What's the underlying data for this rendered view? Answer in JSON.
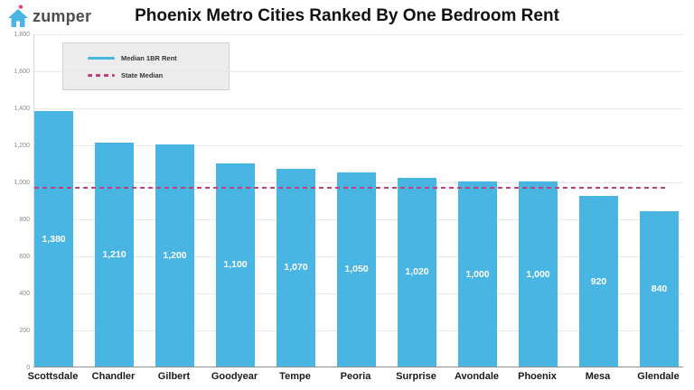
{
  "header": {
    "brand": "zumper"
  },
  "chart_data": {
    "type": "bar",
    "title": "Phoenix Metro Cities Ranked By One Bedroom Rent",
    "categories": [
      "Scottsdale",
      "Chandler",
      "Gilbert",
      "Goodyear",
      "Tempe",
      "Peoria",
      "Surprise",
      "Avondale",
      "Phoenix",
      "Mesa",
      "Glendale"
    ],
    "values": [
      1380,
      1210,
      1200,
      1100,
      1070,
      1050,
      1020,
      1000,
      1000,
      920,
      840
    ],
    "bar_labels": [
      "1,380",
      "1,210",
      "1,200",
      "1,100",
      "1,070",
      "1,050",
      "1,020",
      "1,000",
      "1,000",
      "920",
      "840"
    ],
    "state_median_value": 970,
    "xlabel": "",
    "ylabel": "",
    "ylim": [
      0,
      1800
    ],
    "ytick_step": 200,
    "ytick_labels": [
      "0",
      "200",
      "400",
      "600",
      "800",
      "1,000",
      "1,200",
      "1,400",
      "1,600",
      "1,800"
    ],
    "grid": true,
    "legend": {
      "position": "top-left",
      "items": [
        {
          "label": "Median 1BR Rent",
          "style": "solid",
          "color": "#49b5e2"
        },
        {
          "label": "State Median",
          "style": "dashed",
          "color": "#c2407a"
        }
      ]
    },
    "colors": {
      "bar": "#49b5e2",
      "state_median_line": "#c2407a",
      "logo_house": "#49b5e2",
      "logo_dot": "#f23b6c"
    }
  }
}
